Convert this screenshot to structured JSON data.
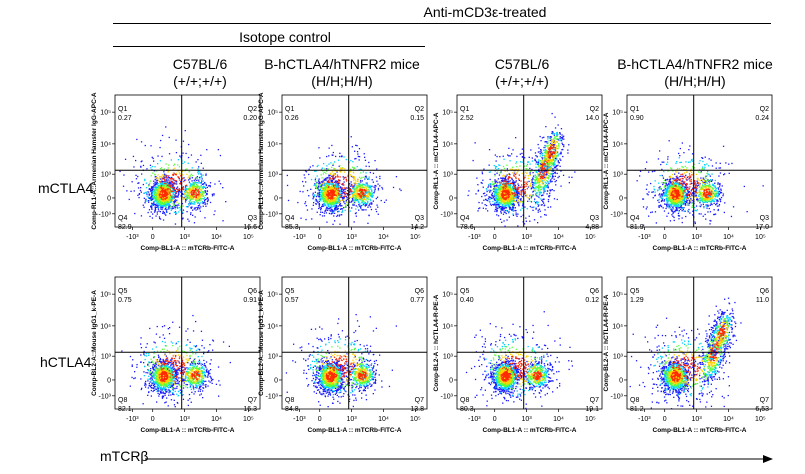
{
  "header": {
    "treatment": "Anti-mCD3ε-treated",
    "control": "Isotope control"
  },
  "columns": [
    {
      "line1": "C57BL/6",
      "line2": "(+/+;+/+)"
    },
    {
      "line1": "B-hCTLA4/hTNFR2 mice",
      "line2": "(H/H;H/H)"
    },
    {
      "line1": "C57BL/6",
      "line2": "(+/+;+/+)"
    },
    {
      "line1": "B-hCTLA4/hTNFR2 mice",
      "line2": "(H/H;H/H)"
    }
  ],
  "rows": [
    "mCTLA4",
    "hCTLA4"
  ],
  "bottom_label": "mTCRβ",
  "colors": {
    "density_low": "#1a1aff",
    "density_mid": "#00d0ff",
    "density_high": "#ff2a00",
    "gate_line": "#000000"
  },
  "chart_data": {
    "type": "scatter",
    "subtype": "flow-cytometry-pseudocolor",
    "x_axis": {
      "label": "Comp-BL1-A :: mTCRb-FITC-A",
      "ticks": [
        "-10³",
        "0",
        "10³",
        "10⁴",
        "10⁵"
      ]
    },
    "y_ticks": [
      "-10³",
      "0",
      "10³",
      "10⁴",
      "10⁵"
    ],
    "panels": [
      {
        "row": 0,
        "col": 0,
        "ylabel": "Comp-RL1-A::Armenian Hamster IgG-APC-A",
        "quadrants": [
          [
            "Q1",
            "0.27"
          ],
          [
            "Q2",
            "0.20"
          ],
          [
            "Q3",
            "16.6"
          ],
          [
            "Q4",
            "82.9"
          ]
        ],
        "trend": "neg"
      },
      {
        "row": 0,
        "col": 1,
        "ylabel": "Comp-RL1-A::Armenian Hamster IgG-APC-A",
        "quadrants": [
          [
            "Q1",
            "0.26"
          ],
          [
            "Q2",
            "0.15"
          ],
          [
            "Q3",
            "14.2"
          ],
          [
            "Q4",
            "85.3"
          ]
        ],
        "trend": "neg"
      },
      {
        "row": 0,
        "col": 2,
        "ylabel": "Comp-RL1-A :: mCTLA4-APC-A",
        "quadrants": [
          [
            "Q1",
            "2.52"
          ],
          [
            "Q2",
            "14.0"
          ],
          [
            "Q3",
            "4.88"
          ],
          [
            "Q4",
            "78.6"
          ]
        ],
        "trend": "pos"
      },
      {
        "row": 0,
        "col": 3,
        "ylabel": "Comp-RL1-A :: mCTLA4-APC-A",
        "quadrants": [
          [
            "Q1",
            "0.90"
          ],
          [
            "Q2",
            "0.24"
          ],
          [
            "Q3",
            "17.0"
          ],
          [
            "Q4",
            "81.9"
          ]
        ],
        "trend": "neg"
      },
      {
        "row": 1,
        "col": 0,
        "ylabel": "Comp-BL2-A::Mouse IgG1_k-PE-A",
        "quadrants": [
          [
            "Q5",
            "0.75"
          ],
          [
            "Q6",
            "0.91"
          ],
          [
            "Q7",
            "16.3"
          ],
          [
            "Q8",
            "82.1"
          ]
        ],
        "trend": "neg"
      },
      {
        "row": 1,
        "col": 1,
        "ylabel": "Comp-BL2-A::Mouse IgG1_k-PE-A",
        "quadrants": [
          [
            "Q5",
            "0.57"
          ],
          [
            "Q6",
            "0.77"
          ],
          [
            "Q7",
            "13.8"
          ],
          [
            "Q8",
            "84.8"
          ]
        ],
        "trend": "neg"
      },
      {
        "row": 1,
        "col": 2,
        "ylabel": "Comp-BL2-A :: hCTLA4-R-PE-A",
        "quadrants": [
          [
            "Q5",
            "0.40"
          ],
          [
            "Q6",
            "0.12"
          ],
          [
            "Q7",
            "19.1"
          ],
          [
            "Q8",
            "80.3"
          ]
        ],
        "trend": "neg"
      },
      {
        "row": 1,
        "col": 3,
        "ylabel": "Comp-BL2-A :: hCTLA4-R-PE-A",
        "quadrants": [
          [
            "Q5",
            "1.29"
          ],
          [
            "Q6",
            "11.0"
          ],
          [
            "Q7",
            "6.53"
          ],
          [
            "Q8",
            "81.2"
          ]
        ],
        "trend": "pos"
      }
    ]
  }
}
